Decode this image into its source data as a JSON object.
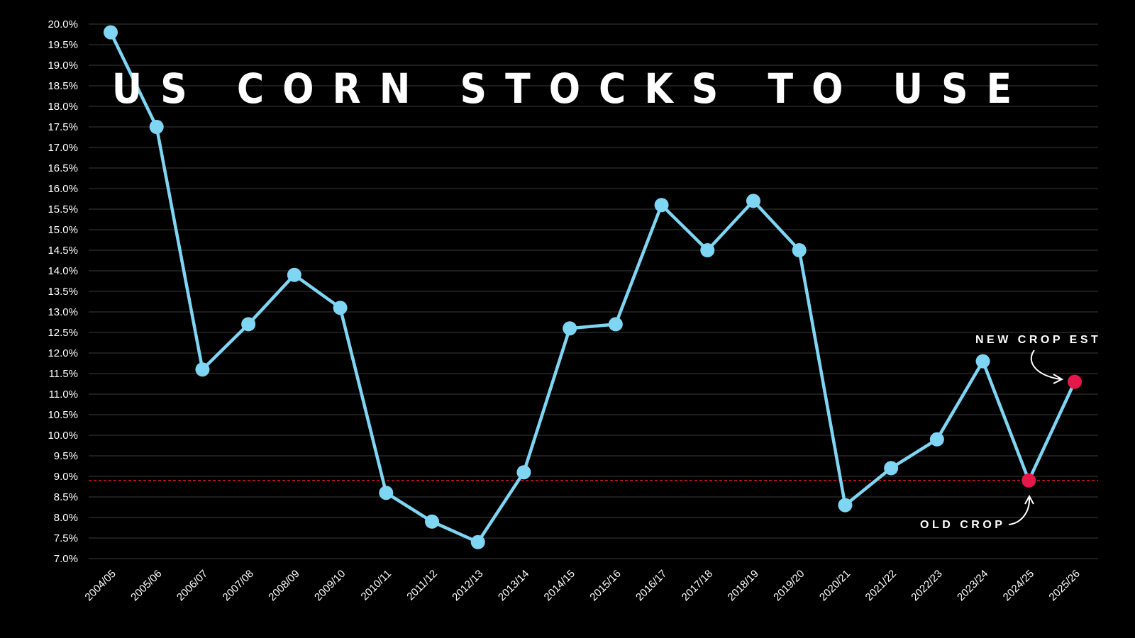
{
  "chart_data": {
    "type": "line",
    "title": "US CORN STOCKS TO USE",
    "xlabel": "",
    "ylabel": "",
    "ylim": [
      7.0,
      20.0
    ],
    "ytick_step": 0.5,
    "ytick_suffix": "%",
    "grid": true,
    "categories": [
      "2004/05",
      "2005/06",
      "2006/07",
      "2007/08",
      "2008/09",
      "2009/10",
      "2010/11",
      "2011/12",
      "2012/13",
      "2013/14",
      "2014/15",
      "2015/16",
      "2016/17",
      "2017/18",
      "2018/19",
      "2019/20",
      "2020/21",
      "2021/22",
      "2022/23",
      "2023/24",
      "2024/25",
      "2025/26"
    ],
    "series": [
      {
        "values": [
          19.8,
          17.5,
          11.6,
          12.7,
          13.9,
          13.1,
          8.6,
          7.9,
          7.4,
          9.1,
          12.6,
          12.7,
          15.6,
          14.5,
          15.7,
          14.5,
          8.3,
          9.2,
          9.9,
          11.8,
          8.9,
          11.3
        ],
        "color": "#7fd6f4"
      }
    ],
    "highlight_points": [
      20,
      21
    ],
    "highlight_color": "#e8174a",
    "reference_line": {
      "value": 8.9,
      "color": "#d0141f",
      "style": "dashed"
    },
    "annotations": [
      {
        "text": "NEW CROP EST",
        "category_index": 21
      },
      {
        "text": "OLD CROP",
        "category_index": 20
      }
    ]
  }
}
